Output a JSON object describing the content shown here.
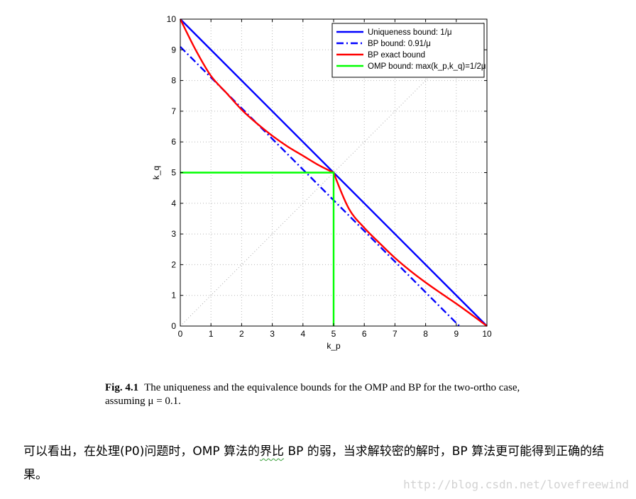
{
  "chart_data": {
    "type": "line",
    "xlabel": "k_p",
    "ylabel": "k_q",
    "xlim": [
      0,
      10
    ],
    "ylim": [
      0,
      10
    ],
    "xticks": [
      0,
      1,
      2,
      3,
      4,
      5,
      6,
      7,
      8,
      9,
      10
    ],
    "yticks": [
      0,
      1,
      2,
      3,
      4,
      5,
      6,
      7,
      8,
      9,
      10
    ],
    "grid": "dotted",
    "legend_position": "top-right",
    "series": [
      {
        "name": "Uniqueness bound: 1/μ",
        "color": "#0000ff",
        "style": "solid",
        "x": [
          0,
          10
        ],
        "y": [
          10,
          0
        ]
      },
      {
        "name": "BP bound: 0.91/μ",
        "color": "#0000ff",
        "style": "dashdot",
        "x": [
          0,
          9.1
        ],
        "y": [
          9.1,
          0
        ]
      },
      {
        "name": "BP exact bound",
        "color": "#ff0000",
        "style": "solid",
        "x": [
          0,
          0.5,
          1,
          1.5,
          2,
          2.5,
          3,
          3.5,
          4,
          4.5,
          5,
          5.5,
          6,
          6.5,
          7,
          7.5,
          8,
          8.5,
          9,
          9.5,
          10
        ],
        "y": [
          10,
          9.0,
          8.15,
          7.6,
          7.05,
          6.6,
          6.2,
          5.85,
          5.55,
          5.25,
          5,
          3.82,
          3.2,
          2.7,
          2.22,
          1.8,
          1.42,
          1.07,
          0.73,
          0.37,
          0
        ]
      },
      {
        "name": "OMP bound: max(k_p,k_q)=1/2μ",
        "color": "#00ff00",
        "style": "solid",
        "x": [
          0,
          5,
          5
        ],
        "y": [
          5,
          5,
          0
        ]
      }
    ],
    "diagonal_reference": {
      "x": [
        0,
        10
      ],
      "y": [
        0,
        10
      ],
      "color": "#aaaaaa",
      "style": "dotted"
    }
  },
  "caption": {
    "label": "Fig. 4.1",
    "line1": "The uniqueness and the equivalence bounds for the OMP and BP for the two-ortho case,",
    "line2": "assuming μ = 0.1."
  },
  "paragraph": {
    "part1": "可以看出，在处理(P0)问题时，OMP 算法的",
    "part2": "界比",
    "part3": " BP 的弱，当求解较密的解时，BP 算法更可能得到正确的结果。"
  },
  "watermark": "http://blog.csdn.net/lovefreewind"
}
